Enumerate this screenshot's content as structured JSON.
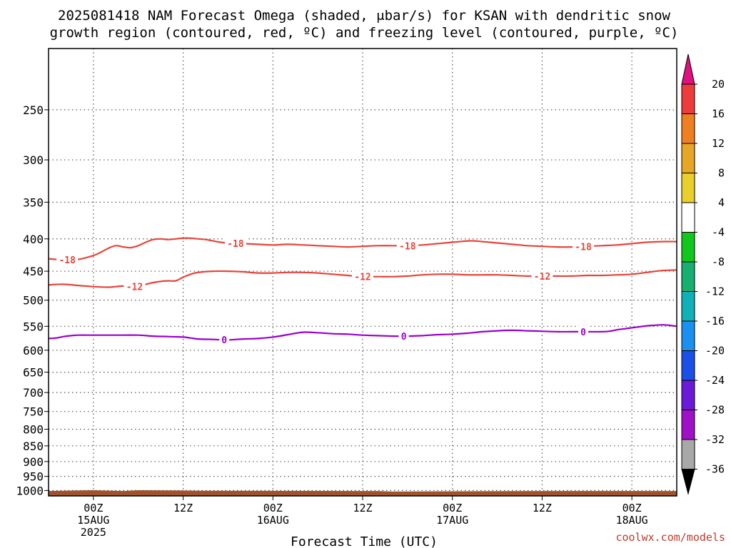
{
  "chart_data": {
    "type": "contour",
    "title_line1": "2025081418 NAM Forecast Omega (shaded, μbar/s) for KSAN with dendritic snow",
    "title_line2": "growth region (contoured, red, ºC) and freezing level (contoured, purple, ºC)",
    "xlabel": "Forecast Time (UTC)",
    "credit": "coolwx.com/models",
    "y_axis": {
      "scale": "log-pressure",
      "range": [
        1020,
        200
      ],
      "ticks": [
        250,
        300,
        350,
        400,
        450,
        500,
        550,
        600,
        650,
        700,
        750,
        800,
        850,
        900,
        950,
        1000
      ],
      "labels": [
        "250",
        "300",
        "350",
        "400",
        "450",
        "500",
        "550",
        "600",
        "650",
        "700",
        "750",
        "800",
        "850",
        "900",
        "950",
        "1000"
      ],
      "grid": true
    },
    "x_axis": {
      "range_hours": [
        -6,
        78
      ],
      "ticks": [
        {
          "h": 0,
          "lines": [
            "00Z",
            "15AUG",
            "2025"
          ]
        },
        {
          "h": 12,
          "lines": [
            "12Z"
          ]
        },
        {
          "h": 24,
          "lines": [
            "00Z",
            "16AUG"
          ]
        },
        {
          "h": 36,
          "lines": [
            "12Z"
          ]
        },
        {
          "h": 48,
          "lines": [
            "00Z",
            "17AUG"
          ]
        },
        {
          "h": 60,
          "lines": [
            "12Z"
          ]
        },
        {
          "h": 72,
          "lines": [
            "00Z",
            "18AUG"
          ]
        }
      ],
      "grid": true
    },
    "contours": [
      {
        "level": "-18",
        "color": "#e8443a",
        "labels_at_h": [
          -3.5,
          19,
          42,
          65.5
        ],
        "points": [
          [
            -6,
            430
          ],
          [
            -4,
            432
          ],
          [
            -2,
            431
          ],
          [
            0,
            425
          ],
          [
            1,
            420
          ],
          [
            2,
            414
          ],
          [
            3,
            410
          ],
          [
            4,
            412
          ],
          [
            5,
            413
          ],
          [
            6,
            410
          ],
          [
            7,
            405
          ],
          [
            8,
            401
          ],
          [
            9,
            400
          ],
          [
            10,
            401
          ],
          [
            11,
            400
          ],
          [
            12,
            399
          ],
          [
            13,
            399
          ],
          [
            14,
            400
          ],
          [
            15,
            401
          ],
          [
            16,
            403
          ],
          [
            17,
            405
          ],
          [
            18,
            406
          ],
          [
            20,
            407
          ],
          [
            22,
            408
          ],
          [
            24,
            409
          ],
          [
            26,
            408
          ],
          [
            28,
            409
          ],
          [
            30,
            410
          ],
          [
            32,
            411
          ],
          [
            34,
            412
          ],
          [
            36,
            411
          ],
          [
            38,
            410
          ],
          [
            40,
            410
          ],
          [
            42,
            410
          ],
          [
            44,
            409
          ],
          [
            46,
            407
          ],
          [
            47,
            406
          ],
          [
            48,
            405
          ],
          [
            49,
            404
          ],
          [
            50,
            403
          ],
          [
            51,
            403
          ],
          [
            52,
            404
          ],
          [
            53,
            405
          ],
          [
            54,
            406
          ],
          [
            55,
            407
          ],
          [
            56,
            408
          ],
          [
            57,
            409
          ],
          [
            58,
            410
          ],
          [
            60,
            411
          ],
          [
            62,
            412
          ],
          [
            64,
            412
          ],
          [
            66,
            411
          ],
          [
            68,
            410
          ],
          [
            70,
            409
          ],
          [
            72,
            407
          ],
          [
            74,
            405
          ],
          [
            76,
            404
          ],
          [
            78,
            404
          ]
        ]
      },
      {
        "level": "-12",
        "color": "#e8443a",
        "labels_at_h": [
          5.5,
          36,
          60
        ],
        "points": [
          [
            -6,
            473
          ],
          [
            -4,
            472
          ],
          [
            -2,
            474
          ],
          [
            0,
            476
          ],
          [
            2,
            477
          ],
          [
            3,
            476
          ],
          [
            4,
            475
          ],
          [
            5,
            477
          ],
          [
            6,
            474
          ],
          [
            7,
            472
          ],
          [
            8,
            469
          ],
          [
            9,
            467
          ],
          [
            10,
            466
          ],
          [
            11,
            466
          ],
          [
            12,
            460
          ],
          [
            13,
            455
          ],
          [
            14,
            452
          ],
          [
            16,
            450
          ],
          [
            18,
            450
          ],
          [
            20,
            451
          ],
          [
            22,
            453
          ],
          [
            24,
            453
          ],
          [
            26,
            452
          ],
          [
            28,
            452
          ],
          [
            30,
            453
          ],
          [
            32,
            455
          ],
          [
            34,
            457
          ],
          [
            36,
            459
          ],
          [
            38,
            459
          ],
          [
            40,
            459
          ],
          [
            42,
            458
          ],
          [
            44,
            456
          ],
          [
            46,
            455
          ],
          [
            48,
            455
          ],
          [
            50,
            456
          ],
          [
            52,
            456
          ],
          [
            54,
            456
          ],
          [
            56,
            457
          ],
          [
            58,
            458
          ],
          [
            60,
            458
          ],
          [
            62,
            458
          ],
          [
            64,
            458
          ],
          [
            66,
            457
          ],
          [
            68,
            457
          ],
          [
            70,
            456
          ],
          [
            72,
            455
          ],
          [
            74,
            452
          ],
          [
            76,
            449
          ],
          [
            78,
            448
          ]
        ]
      },
      {
        "level": "0",
        "color": "#9b00cc",
        "labels_at_h": [
          17.5,
          41.5,
          65.5
        ],
        "points": [
          [
            -6,
            575
          ],
          [
            -5,
            574
          ],
          [
            -4,
            571
          ],
          [
            -3,
            569
          ],
          [
            -2,
            568
          ],
          [
            0,
            568
          ],
          [
            2,
            568
          ],
          [
            4,
            568
          ],
          [
            6,
            568
          ],
          [
            8,
            570
          ],
          [
            10,
            571
          ],
          [
            12,
            572
          ],
          [
            13,
            574
          ],
          [
            14,
            576
          ],
          [
            16,
            577
          ],
          [
            18,
            578
          ],
          [
            20,
            576
          ],
          [
            22,
            575
          ],
          [
            24,
            572
          ],
          [
            26,
            567
          ],
          [
            28,
            562
          ],
          [
            30,
            563
          ],
          [
            32,
            565
          ],
          [
            34,
            566
          ],
          [
            36,
            568
          ],
          [
            38,
            569
          ],
          [
            40,
            570
          ],
          [
            42,
            570
          ],
          [
            44,
            569
          ],
          [
            46,
            567
          ],
          [
            48,
            566
          ],
          [
            50,
            564
          ],
          [
            52,
            561
          ],
          [
            54,
            559
          ],
          [
            56,
            558
          ],
          [
            58,
            559
          ],
          [
            60,
            560
          ],
          [
            62,
            561
          ],
          [
            64,
            561
          ],
          [
            66,
            561
          ],
          [
            68,
            561
          ],
          [
            69,
            560
          ],
          [
            70,
            557
          ],
          [
            71,
            555
          ],
          [
            72,
            553
          ],
          [
            73,
            551
          ],
          [
            74,
            549
          ],
          [
            75,
            548
          ],
          [
            76,
            547
          ],
          [
            77,
            548
          ],
          [
            78,
            550
          ]
        ]
      }
    ],
    "ground": {
      "color": "#a0522d",
      "top_hpa": [
        [
          -6,
          1002
        ],
        [
          0,
          999
        ],
        [
          4,
          1002
        ],
        [
          6,
          999
        ],
        [
          12,
          1000
        ],
        [
          14,
          1001
        ],
        [
          38,
          1002
        ],
        [
          40,
          1004
        ],
        [
          48,
          1003
        ],
        [
          60,
          1002
        ],
        [
          78,
          1002
        ]
      ]
    },
    "colorbar": {
      "labels": [
        "20",
        "16",
        "12",
        "8",
        "4",
        "-4",
        "-8",
        "-12",
        "-16",
        "-20",
        "-24",
        "-28",
        "-32",
        "-36"
      ],
      "colors": [
        "#ee3b3b",
        "#f07f22",
        "#e8a626",
        "#e8cf2a",
        "#ffffff",
        "#10c81c",
        "#18b070",
        "#10b0b8",
        "#1a90f0",
        "#1a50e8",
        "#6a1ad8",
        "#a010c8",
        "#a8a8a8"
      ],
      "top_arrow_color": "#e0107f",
      "bottom_arrow_color": "#000000"
    }
  }
}
